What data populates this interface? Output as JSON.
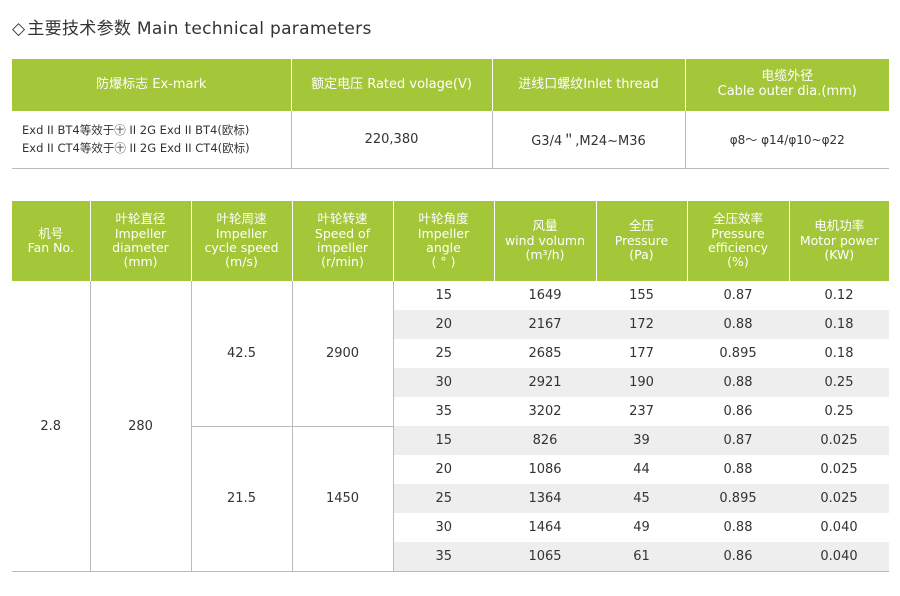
{
  "title": {
    "diamond": "◇",
    "text": "主要技术参数  Main technical parameters"
  },
  "spec_table": {
    "headers": [
      "防爆标志  Ex-mark",
      "额定电压 Rated volage(V)",
      "进线口螺纹Inlet thread",
      "电缆外径\nCable outer dia.(mm)"
    ],
    "ex_mark_lines": [
      "Exd II BT4等效于㊉ II 2G Exd II BT4(欧标)",
      "Exd II CT4等效于㊉ II 2G Exd II CT4(欧标)"
    ],
    "rated_voltage": "220,380",
    "inlet_thread": "G3/4＂,M24~M36",
    "cable_outer_dia": "φ8～ φ14/φ10~φ22"
  },
  "perf_table": {
    "headers": [
      "机号\nFan No.",
      "叶轮直径\nImpeller\ndiameter\n(mm)",
      "叶轮周速\nImpeller\ncycle speed\n(m/s)",
      "叶轮转速\nSpeed of\nimpeller\n(r/min)",
      "叶轮角度\nImpeller\nangle\n(  °  )",
      "风量\nwind volumn\n(m³/h)",
      "全压\nPressure\n(Pa)",
      "全压效率\nPressure\nefficiency\n(%)",
      "电机功率\nMotor power\n(KW)"
    ],
    "fan_no": "2.8",
    "impeller_diameter": "280",
    "groups": [
      {
        "cycle_speed": "42.5",
        "rotation_speed": "2900",
        "rows": [
          {
            "angle": "15",
            "wind": "1649",
            "pressure": "155",
            "efficiency": "0.87",
            "power": "0.12"
          },
          {
            "angle": "20",
            "wind": "2167",
            "pressure": "172",
            "efficiency": "0.88",
            "power": "0.18"
          },
          {
            "angle": "25",
            "wind": "2685",
            "pressure": "177",
            "efficiency": "0.895",
            "power": "0.18"
          },
          {
            "angle": "30",
            "wind": "2921",
            "pressure": "190",
            "efficiency": "0.88",
            "power": "0.25"
          },
          {
            "angle": "35",
            "wind": "3202",
            "pressure": "237",
            "efficiency": "0.86",
            "power": "0.25"
          }
        ]
      },
      {
        "cycle_speed": "21.5",
        "rotation_speed": "1450",
        "rows": [
          {
            "angle": "15",
            "wind": "826",
            "pressure": "39",
            "efficiency": "0.87",
            "power": "0.025"
          },
          {
            "angle": "20",
            "wind": "1086",
            "pressure": "44",
            "efficiency": "0.88",
            "power": "0.025"
          },
          {
            "angle": "25",
            "wind": "1364",
            "pressure": "45",
            "efficiency": "0.895",
            "power": "0.025"
          },
          {
            "angle": "30",
            "wind": "1464",
            "pressure": "49",
            "efficiency": "0.88",
            "power": "0.040"
          },
          {
            "angle": "35",
            "wind": "1065",
            "pressure": "61",
            "efficiency": "0.86",
            "power": "0.040"
          }
        ]
      }
    ]
  },
  "colors": {
    "header_green": "#a4c639",
    "row_stripe": "#eeeeee"
  }
}
